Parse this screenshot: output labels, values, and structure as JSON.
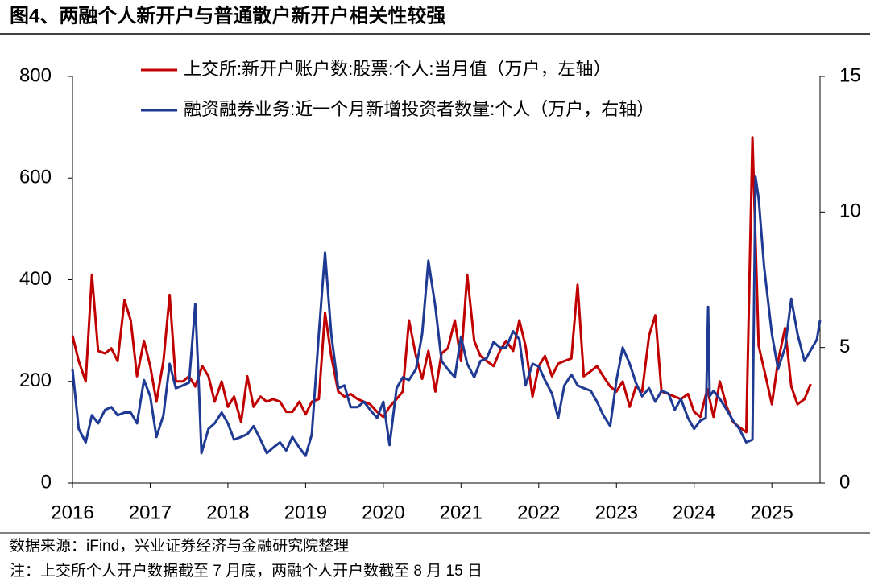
{
  "chart_data": {
    "type": "line",
    "title": "图4、两融个人新开户与普通散户新开户相关性较强",
    "notes": [
      "数据来源：iFind，兴业证券经济与金融研究院整理",
      "注：上交所个人开户数据截至 7 月底，两融个人开户数截至 8 月 15 日"
    ],
    "xlim": [
      2016,
      2025.62
    ],
    "xticks": [
      2016,
      2017,
      2018,
      2019,
      2020,
      2021,
      2022,
      2023,
      2024,
      2025
    ],
    "ylim": [
      0,
      800
    ],
    "yticks": [
      0,
      200,
      400,
      600,
      800
    ],
    "y2lim": [
      0,
      15
    ],
    "y2ticks": [
      0,
      5,
      10,
      15
    ],
    "grid": false,
    "legend": "top",
    "series": [
      {
        "name": "上交所:新开户账户数:股票:个人:当月值（万户，左轴）",
        "color": "#c00000",
        "axis": "y",
        "x": [
          2016.0,
          2016.08,
          2016.17,
          2016.25,
          2016.33,
          2016.42,
          2016.5,
          2016.58,
          2016.67,
          2016.75,
          2016.83,
          2016.92,
          2017.0,
          2017.08,
          2017.17,
          2017.25,
          2017.33,
          2017.42,
          2017.5,
          2017.58,
          2017.67,
          2017.75,
          2017.83,
          2017.92,
          2018.0,
          2018.08,
          2018.17,
          2018.25,
          2018.33,
          2018.42,
          2018.5,
          2018.58,
          2018.67,
          2018.75,
          2018.83,
          2018.92,
          2019.0,
          2019.08,
          2019.17,
          2019.25,
          2019.33,
          2019.42,
          2019.5,
          2019.58,
          2019.67,
          2019.75,
          2019.83,
          2019.92,
          2020.0,
          2020.08,
          2020.17,
          2020.25,
          2020.33,
          2020.42,
          2020.5,
          2020.58,
          2020.67,
          2020.75,
          2020.83,
          2020.92,
          2021.0,
          2021.08,
          2021.17,
          2021.25,
          2021.33,
          2021.42,
          2021.5,
          2021.58,
          2021.67,
          2021.75,
          2021.83,
          2021.92,
          2022.0,
          2022.08,
          2022.17,
          2022.25,
          2022.33,
          2022.42,
          2022.5,
          2022.58,
          2022.67,
          2022.75,
          2022.83,
          2022.92,
          2023.0,
          2023.08,
          2023.17,
          2023.25,
          2023.33,
          2023.42,
          2023.5,
          2023.58,
          2023.67,
          2023.75,
          2023.83,
          2023.92,
          2024.0,
          2024.08,
          2024.17,
          2024.25,
          2024.33,
          2024.42,
          2024.5,
          2024.58,
          2024.67,
          2024.75,
          2024.83,
          2024.92,
          2025.0,
          2025.08,
          2025.17,
          2025.25,
          2025.33,
          2025.42,
          2025.5
        ],
        "values": [
          290,
          240,
          200,
          410,
          260,
          255,
          265,
          240,
          360,
          320,
          210,
          280,
          230,
          160,
          240,
          370,
          200,
          200,
          210,
          190,
          230,
          210,
          160,
          200,
          150,
          170,
          120,
          210,
          150,
          170,
          160,
          165,
          160,
          140,
          140,
          160,
          135,
          160,
          165,
          335,
          250,
          180,
          170,
          175,
          165,
          160,
          155,
          140,
          130,
          150,
          165,
          180,
          320,
          250,
          205,
          260,
          180,
          255,
          265,
          320,
          240,
          410,
          280,
          250,
          240,
          230,
          260,
          280,
          260,
          320,
          270,
          170,
          230,
          250,
          210,
          235,
          240,
          245,
          390,
          210,
          220,
          230,
          210,
          190,
          180,
          200,
          150,
          190,
          180,
          290,
          330,
          180,
          175,
          170,
          165,
          175,
          140,
          130,
          185,
          130,
          200,
          150,
          120,
          110,
          100,
          680,
          270,
          210,
          155,
          240,
          305,
          190,
          155,
          165,
          195
        ]
      },
      {
        "name": "融资融券业务:近一个月新增投资者数量:个人（万户，右轴）",
        "color": "#1f3a93",
        "axis": "y2",
        "x": [
          2016.0,
          2016.08,
          2016.17,
          2016.25,
          2016.33,
          2016.42,
          2016.5,
          2016.58,
          2016.67,
          2016.75,
          2016.83,
          2016.92,
          2017.0,
          2017.08,
          2017.17,
          2017.25,
          2017.33,
          2017.42,
          2017.5,
          2017.58,
          2017.62,
          2017.66,
          2017.75,
          2017.83,
          2017.92,
          2018.0,
          2018.08,
          2018.17,
          2018.25,
          2018.33,
          2018.42,
          2018.5,
          2018.58,
          2018.67,
          2018.75,
          2018.83,
          2018.92,
          2019.0,
          2019.08,
          2019.17,
          2019.25,
          2019.33,
          2019.42,
          2019.5,
          2019.58,
          2019.67,
          2019.75,
          2019.83,
          2019.92,
          2020.0,
          2020.08,
          2020.17,
          2020.25,
          2020.33,
          2020.42,
          2020.5,
          2020.58,
          2020.67,
          2020.75,
          2020.83,
          2020.92,
          2021.0,
          2021.08,
          2021.17,
          2021.25,
          2021.33,
          2021.42,
          2021.5,
          2021.58,
          2021.67,
          2021.75,
          2021.83,
          2021.92,
          2022.0,
          2022.08,
          2022.17,
          2022.25,
          2022.33,
          2022.42,
          2022.5,
          2022.58,
          2022.67,
          2022.75,
          2022.83,
          2022.92,
          2023.0,
          2023.08,
          2023.17,
          2023.25,
          2023.33,
          2023.42,
          2023.5,
          2023.58,
          2023.67,
          2023.75,
          2023.83,
          2023.92,
          2024.0,
          2024.08,
          2024.15,
          2024.18,
          2024.2,
          2024.25,
          2024.33,
          2024.42,
          2024.5,
          2024.58,
          2024.67,
          2024.75,
          2024.79,
          2024.83,
          2024.9,
          2025.0,
          2025.08,
          2025.17,
          2025.25,
          2025.33,
          2025.42,
          2025.5,
          2025.58,
          2025.62
        ],
        "values": [
          4.2,
          2.0,
          1.5,
          2.5,
          2.2,
          2.7,
          2.8,
          2.5,
          2.6,
          2.6,
          2.2,
          3.8,
          3.2,
          1.7,
          2.5,
          4.4,
          3.5,
          3.6,
          3.7,
          6.6,
          4.0,
          1.1,
          2.0,
          2.2,
          2.6,
          2.2,
          1.6,
          1.7,
          1.8,
          2.1,
          1.6,
          1.1,
          1.3,
          1.5,
          1.2,
          1.7,
          1.3,
          1.0,
          1.8,
          5.5,
          8.5,
          5.5,
          3.5,
          3.6,
          2.8,
          2.8,
          3.0,
          2.7,
          2.4,
          3.0,
          1.4,
          3.5,
          3.9,
          3.8,
          4.2,
          5.5,
          8.2,
          6.5,
          4.5,
          4.2,
          3.9,
          5.4,
          4.4,
          3.9,
          4.5,
          4.6,
          5.2,
          5.0,
          5.0,
          5.6,
          5.3,
          3.6,
          4.4,
          4.3,
          3.8,
          3.3,
          2.4,
          3.6,
          4.0,
          3.6,
          3.5,
          3.4,
          3.0,
          2.5,
          2.1,
          3.8,
          5.0,
          4.4,
          3.7,
          3.2,
          3.5,
          3.0,
          3.4,
          3.3,
          2.7,
          3.1,
          2.4,
          2.0,
          2.3,
          2.4,
          6.5,
          3.2,
          3.4,
          3.1,
          2.7,
          2.3,
          2.0,
          1.5,
          1.6,
          11.3,
          10.5,
          8.0,
          5.5,
          4.2,
          5.0,
          6.8,
          5.5,
          4.5,
          4.9,
          5.3,
          6.0
        ]
      }
    ]
  }
}
